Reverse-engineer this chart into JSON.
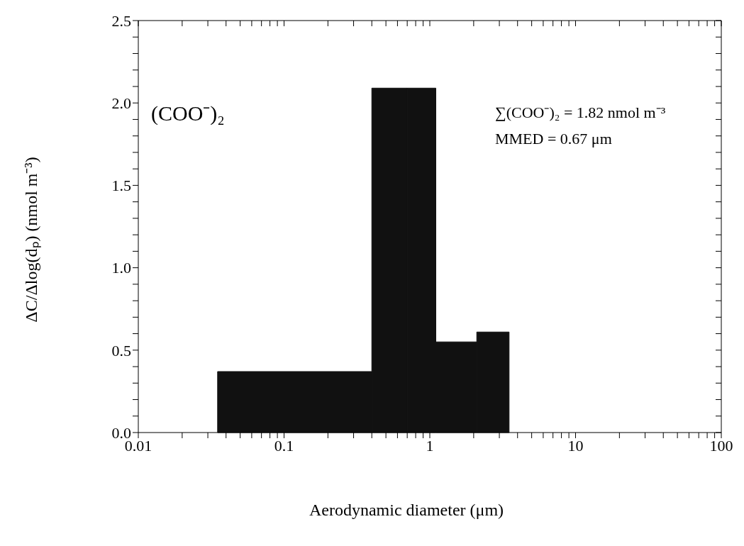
{
  "chart_data": {
    "type": "histogram",
    "xlabel": "Aerodynamic diameter (μm)",
    "ylabel": "ΔC/Δlog(dₚ)   (nmol m⁻³)",
    "bins": [
      0.035,
      0.4,
      0.7,
      1.1,
      2.1,
      3.5
    ],
    "values": [
      0.37,
      2.09,
      2.09,
      0.55,
      0.61
    ],
    "color": "#111111",
    "log": "x",
    "xlim": [
      0.01,
      100
    ],
    "xticks": [
      0.01,
      {
        "value": 0.02,
        "label": null
      },
      {
        "value": 0.03,
        "label": null
      },
      {
        "value": 0.04,
        "label": null
      },
      {
        "value": 0.05,
        "label": null
      },
      {
        "value": 0.06,
        "label": null
      },
      {
        "value": 0.07,
        "label": null
      },
      {
        "value": 0.08,
        "label": null
      },
      {
        "value": 0.09,
        "label": null
      },
      0.1,
      {
        "value": 0.2,
        "label": null
      },
      {
        "value": 0.3,
        "label": null
      },
      {
        "value": 0.4,
        "label": null
      },
      {
        "value": 0.5,
        "label": null
      },
      {
        "value": 0.6,
        "label": null
      },
      {
        "value": 0.7,
        "label": null
      },
      {
        "value": 0.8,
        "label": null
      },
      {
        "value": 0.9,
        "label": null
      },
      1,
      {
        "value": 2,
        "label": null
      },
      {
        "value": 3,
        "label": null
      },
      {
        "value": 4,
        "label": null
      },
      {
        "value": 5,
        "label": null
      },
      {
        "value": 6,
        "label": null
      },
      {
        "value": 7,
        "label": null
      },
      {
        "value": 8,
        "label": null
      },
      {
        "value": 9,
        "label": null
      },
      10,
      {
        "value": 20,
        "label": null
      },
      {
        "value": 30,
        "label": null
      },
      {
        "value": 40,
        "label": null
      },
      {
        "value": 50,
        "label": null
      },
      {
        "value": 60,
        "label": null
      },
      {
        "value": 70,
        "label": null
      },
      {
        "value": 80,
        "label": null
      },
      {
        "value": 90,
        "label": null
      },
      100
    ],
    "ylim": [
      0,
      2.5
    ],
    "yticks": [
      {
        "value": 0,
        "label": "0.0"
      },
      {
        "value": 0.1,
        "label": null
      },
      {
        "value": 0.2,
        "label": null
      },
      {
        "value": 0.3,
        "label": null
      },
      {
        "value": 0.4,
        "label": null
      },
      {
        "value": 0.5,
        "label": "0.5"
      },
      {
        "value": 0.6,
        "label": null
      },
      {
        "value": 0.7,
        "label": null
      },
      {
        "value": 0.8,
        "label": null
      },
      {
        "value": 0.9,
        "label": null
      },
      {
        "value": 1,
        "label": "1.0"
      },
      {
        "value": 1.1,
        "label": null
      },
      {
        "value": 1.2,
        "label": null
      },
      {
        "value": 1.3,
        "label": null
      },
      {
        "value": 1.4,
        "label": null
      },
      {
        "value": 1.5,
        "label": "1.5"
      },
      {
        "value": 1.6,
        "label": null
      },
      {
        "value": 1.7,
        "label": null
      },
      {
        "value": 1.8,
        "label": null
      },
      {
        "value": 1.9,
        "label": null
      },
      {
        "value": 2,
        "label": "2.0"
      },
      {
        "value": 2.1,
        "label": null
      },
      {
        "value": 2.2,
        "label": null
      },
      {
        "value": 2.3,
        "label": null
      },
      {
        "value": 2.4,
        "label": null
      },
      {
        "value": 2.5,
        "label": "2.5"
      }
    ],
    "grid": false,
    "annotations": [
      "(COO⁻)₂",
      "∑(COO⁻)₂ = 1.82  nmol m⁻³",
      "MMED = 0.67 μm"
    ]
  }
}
